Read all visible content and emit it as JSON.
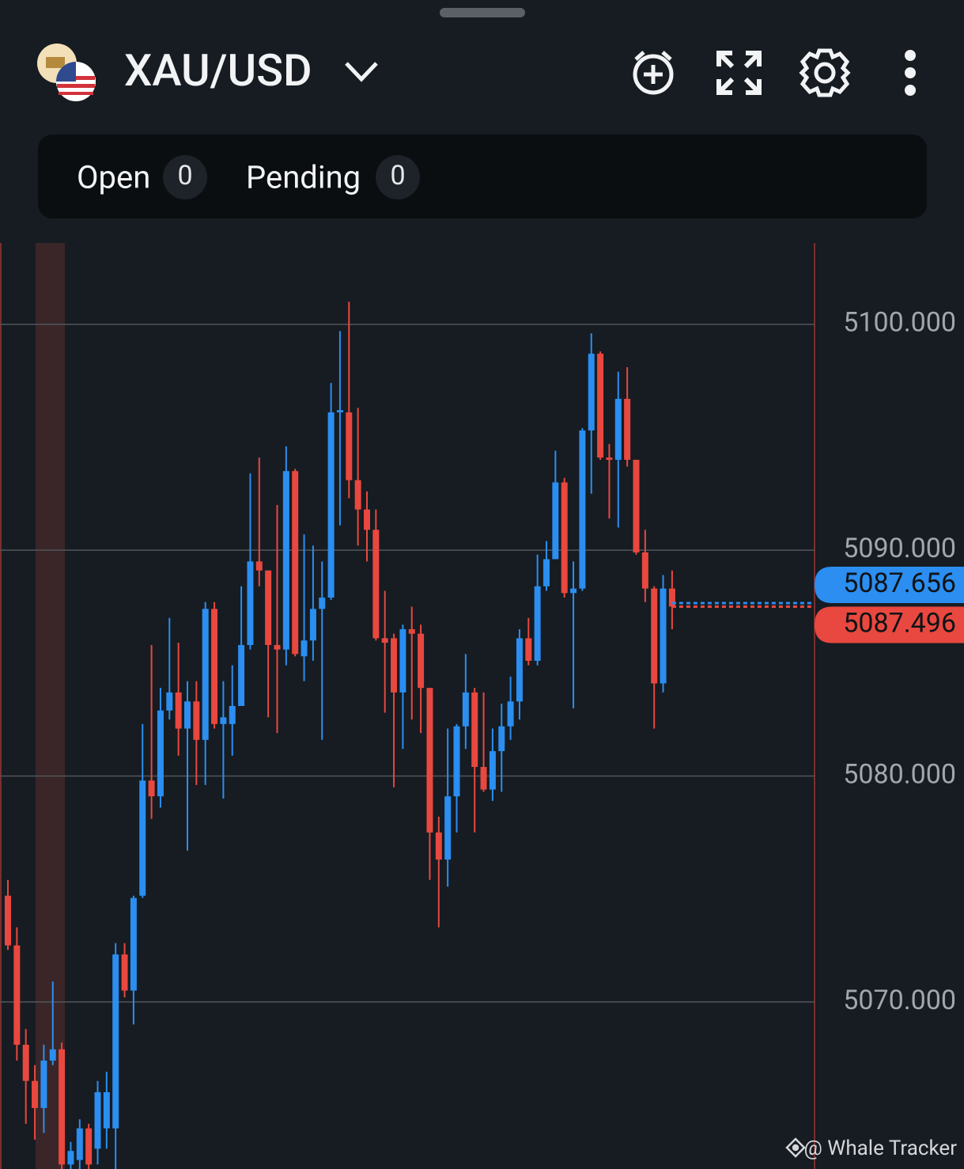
{
  "header": {
    "symbol": "XAU/USD",
    "tabs": [
      {
        "label": "Open",
        "count": 0
      },
      {
        "label": "Pending",
        "count": 0
      }
    ]
  },
  "watermark": "@ Whale Tracker",
  "chart_data": {
    "type": "candlestick",
    "up_color": "#2b8ef0",
    "down_color": "#e8483f",
    "grid": true,
    "ylim": [
      5062.6,
      5103.6
    ],
    "yticks": [
      {
        "value": 5100,
        "label": "5100.000"
      },
      {
        "value": 5090,
        "label": "5090.000"
      },
      {
        "value": 5080,
        "label": "5080.000"
      },
      {
        "value": 5070,
        "label": "5070.000"
      }
    ],
    "ask": 5087.656,
    "bid": 5087.496,
    "open": [
      5074.7,
      5072.5,
      5068.1,
      5066.5,
      5065.3,
      5067.4,
      5067.9,
      5062.8,
      5063.0,
      5064.4,
      5063.5,
      5064.4,
      5064.4,
      5072.1,
      5070.5,
      5074.7,
      5079.8,
      5079.1,
      5082.9,
      5083.7,
      5082.1,
      5083.3,
      5081.6,
      5087.4,
      5082.3,
      5082.3,
      5083.1,
      5085.8,
      5089.5,
      5089.1,
      5085.8,
      5085.6,
      5093.5,
      5085.3,
      5086.0,
      5087.4,
      5087.9,
      5096.1,
      5096.1,
      5093.1,
      5091.8,
      5090.9,
      5086.1,
      5086.1,
      5083.7,
      5086.5,
      5086.3,
      5083.9,
      5077.5,
      5076.3,
      5079.1,
      5082.2,
      5083.7,
      5080.4,
      5079.4,
      5081.1,
      5082.2,
      5083.3,
      5086.1,
      5085.1,
      5088.4,
      5089.6,
      5093.0,
      5088.1,
      5088.3,
      5095.3,
      5098.7,
      5094.1,
      5094.0,
      5096.7,
      5094.0,
      5089.9,
      5088.3,
      5084.1,
      5088.3
    ],
    "high": [
      5075.4,
      5073.3,
      5068.8,
      5067.2,
      5068.1,
      5070.9,
      5068.2,
      5063.8,
      5064.8,
      5064.6,
      5066.5,
      5066.9,
      5072.6,
      5072.6,
      5074.7,
      5082.3,
      5085.8,
      5083.9,
      5087.0,
      5085.9,
      5084.2,
      5084.2,
      5087.7,
      5087.7,
      5084.2,
      5084.9,
      5088.4,
      5093.4,
      5094.1,
      5089.1,
      5092.0,
      5094.6,
      5093.6,
      5090.7,
      5090.2,
      5089.5,
      5097.4,
      5099.7,
      5101.0,
      5096.3,
      5092.6,
      5091.8,
      5088.2,
      5086.3,
      5086.7,
      5087.5,
      5086.7,
      5083.9,
      5078.2,
      5082.1,
      5082.3,
      5085.4,
      5083.9,
      5083.7,
      5082.1,
      5083.2,
      5084.4,
      5086.5,
      5087.0,
      5089.8,
      5090.4,
      5094.4,
      5093.2,
      5089.5,
      5095.4,
      5099.6,
      5098.8,
      5094.7,
      5097.9,
      5098.1,
      5094.0,
      5090.9,
      5088.4,
      5088.9,
      5089.1
    ],
    "low": [
      5072.3,
      5067.4,
      5064.6,
      5063.9,
      5064.2,
      5067.2,
      5062.0,
      5062.2,
      5062.2,
      5062.2,
      5062.8,
      5063.5,
      5062.6,
      5070.2,
      5069.0,
      5074.6,
      5078.1,
      5078.6,
      5082.5,
      5080.9,
      5076.7,
      5079.6,
      5079.6,
      5082.1,
      5079.0,
      5080.9,
      5083.1,
      5085.6,
      5088.4,
      5082.6,
      5081.9,
      5084.9,
      5085.3,
      5084.2,
      5085.1,
      5081.6,
      5087.8,
      5091.1,
      5092.3,
      5090.2,
      5089.5,
      5086.0,
      5082.8,
      5079.5,
      5081.2,
      5082.5,
      5081.9,
      5075.4,
      5073.3,
      5075.1,
      5077.5,
      5081.2,
      5077.5,
      5079.3,
      5078.9,
      5079.3,
      5081.6,
      5082.5,
      5084.9,
      5084.9,
      5088.2,
      5089.6,
      5087.9,
      5083.0,
      5088.2,
      5092.5,
      5094.0,
      5091.4,
      5091.0,
      5093.7,
      5089.8,
      5087.7,
      5082.1,
      5083.7,
      5086.5
    ],
    "close": [
      5072.5,
      5068.1,
      5066.5,
      5065.3,
      5067.4,
      5067.9,
      5062.8,
      5063.4,
      5064.4,
      5062.8,
      5066.0,
      5066.0,
      5072.1,
      5070.5,
      5074.6,
      5079.8,
      5079.1,
      5082.9,
      5083.7,
      5082.1,
      5083.3,
      5081.6,
      5087.4,
      5082.3,
      5082.6,
      5083.1,
      5085.8,
      5089.5,
      5089.1,
      5085.8,
      5085.6,
      5093.5,
      5085.4,
      5086.0,
      5087.4,
      5087.9,
      5096.1,
      5096.2,
      5093.1,
      5091.8,
      5090.9,
      5086.1,
      5085.9,
      5083.7,
      5086.5,
      5086.3,
      5083.9,
      5077.5,
      5076.3,
      5079.1,
      5082.2,
      5083.7,
      5080.4,
      5079.4,
      5081.1,
      5082.2,
      5083.3,
      5086.1,
      5085.1,
      5088.4,
      5089.6,
      5093.0,
      5088.1,
      5088.3,
      5095.3,
      5098.7,
      5094.1,
      5094.0,
      5096.7,
      5094.0,
      5089.9,
      5088.3,
      5084.1,
      5088.3,
      5087.5
    ]
  }
}
